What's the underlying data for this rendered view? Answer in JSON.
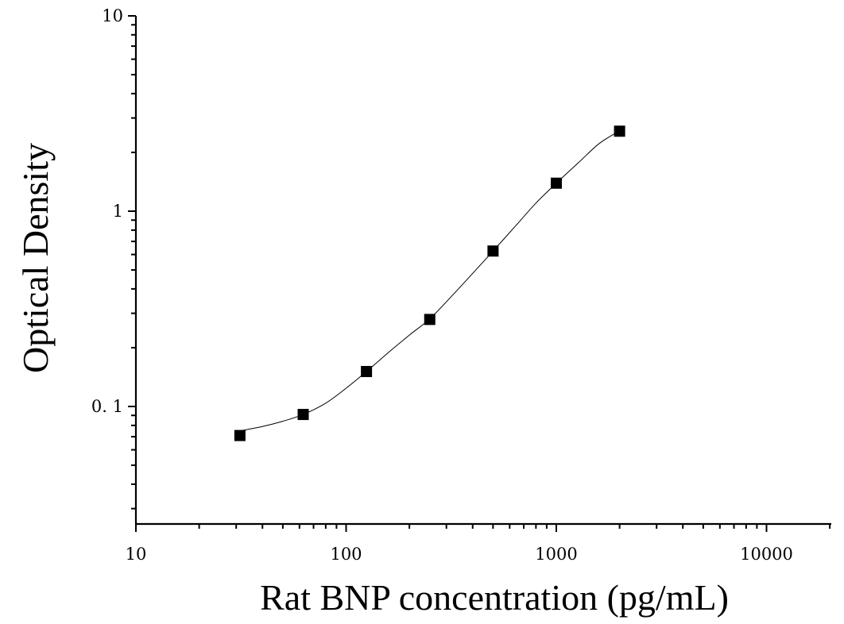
{
  "chart_data": {
    "type": "scatter",
    "x_scale": "log",
    "y_scale": "log",
    "xlabel": "Rat BNP concentration (pg/mL)",
    "ylabel": "Optical Density",
    "xlim": [
      10,
      20000
    ],
    "ylim": [
      0.025,
      10
    ],
    "x_ticks": [
      10,
      100,
      1000,
      10000
    ],
    "x_tick_labels": [
      "10",
      "100",
      "1000",
      "10000"
    ],
    "y_ticks": [
      0.1,
      1,
      10
    ],
    "y_tick_labels": [
      "0. 1",
      "1",
      "10"
    ],
    "grid": false,
    "series": [
      {
        "marker": "square",
        "color": "#000000",
        "x": [
          31.25,
          62.5,
          125,
          250,
          500,
          1000,
          2000
        ],
        "y": [
          0.071,
          0.091,
          0.151,
          0.279,
          0.625,
          1.391,
          2.568
        ]
      }
    ],
    "fit_curve": {
      "style": "line",
      "color": "#000000",
      "x": [
        31.25,
        40,
        50,
        62.5,
        80,
        100,
        125,
        160,
        200,
        250,
        320,
        400,
        500,
        640,
        800,
        1000,
        1280,
        1600,
        2000
      ],
      "y": [
        0.075,
        0.079,
        0.084,
        0.091,
        0.104,
        0.124,
        0.151,
        0.19,
        0.232,
        0.281,
        0.37,
        0.48,
        0.625,
        0.84,
        1.1,
        1.39,
        1.78,
        2.22,
        2.58
      ]
    }
  }
}
